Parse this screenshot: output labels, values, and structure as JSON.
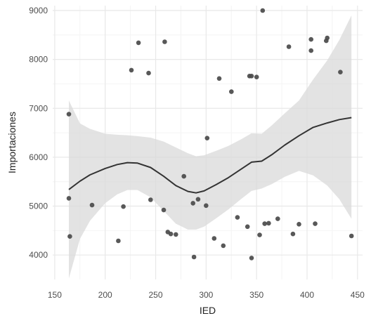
{
  "chart_data": {
    "type": "scatter",
    "xlabel": "IED",
    "ylabel": "Importaciones",
    "xlim": [
      148,
      455
    ],
    "ylim": [
      3500,
      9100
    ],
    "x_ticks": [
      150,
      200,
      250,
      300,
      350,
      400,
      450
    ],
    "y_ticks": [
      4000,
      5000,
      6000,
      7000,
      8000,
      9000
    ],
    "grid": true,
    "colors": {
      "points": "#4a4a4a",
      "smooth_line": "#333333",
      "confidence_band": "#d9d9d9",
      "grid_major": "#e8e8e8",
      "grid_minor": "#f4f4f4",
      "background": "#ffffff"
    },
    "points": [
      {
        "x": 164,
        "y": 6880
      },
      {
        "x": 164,
        "y": 5160
      },
      {
        "x": 165,
        "y": 4380
      },
      {
        "x": 187,
        "y": 5020
      },
      {
        "x": 213,
        "y": 4290
      },
      {
        "x": 218,
        "y": 4990
      },
      {
        "x": 226,
        "y": 7780
      },
      {
        "x": 233,
        "y": 8340
      },
      {
        "x": 243,
        "y": 7720
      },
      {
        "x": 245,
        "y": 5130
      },
      {
        "x": 258,
        "y": 4920
      },
      {
        "x": 259,
        "y": 8360
      },
      {
        "x": 262,
        "y": 4470
      },
      {
        "x": 265,
        "y": 4430
      },
      {
        "x": 270,
        "y": 4420
      },
      {
        "x": 278,
        "y": 5610
      },
      {
        "x": 287,
        "y": 5060
      },
      {
        "x": 288,
        "y": 3960
      },
      {
        "x": 292,
        "y": 5140
      },
      {
        "x": 300,
        "y": 5010
      },
      {
        "x": 301,
        "y": 6390
      },
      {
        "x": 308,
        "y": 4340
      },
      {
        "x": 313,
        "y": 7610
      },
      {
        "x": 317,
        "y": 4190
      },
      {
        "x": 325,
        "y": 7340
      },
      {
        "x": 331,
        "y": 4770
      },
      {
        "x": 341,
        "y": 4580
      },
      {
        "x": 343,
        "y": 7660
      },
      {
        "x": 345,
        "y": 7660
      },
      {
        "x": 345,
        "y": 3940
      },
      {
        "x": 350,
        "y": 7640
      },
      {
        "x": 353,
        "y": 4410
      },
      {
        "x": 356,
        "y": 9000
      },
      {
        "x": 358,
        "y": 4640
      },
      {
        "x": 362,
        "y": 4650
      },
      {
        "x": 371,
        "y": 4740
      },
      {
        "x": 382,
        "y": 8260
      },
      {
        "x": 386,
        "y": 4430
      },
      {
        "x": 392,
        "y": 4630
      },
      {
        "x": 404,
        "y": 8410
      },
      {
        "x": 404,
        "y": 8180
      },
      {
        "x": 408,
        "y": 4640
      },
      {
        "x": 419,
        "y": 8380
      },
      {
        "x": 420,
        "y": 8440
      },
      {
        "x": 433,
        "y": 7740
      },
      {
        "x": 444,
        "y": 4390
      }
    ],
    "smooth": {
      "x": [
        164,
        175,
        185,
        200,
        212,
        222,
        232,
        245,
        258,
        270,
        282,
        290,
        298,
        310,
        322,
        335,
        345,
        355,
        365,
        378,
        392,
        406,
        420,
        432,
        444
      ],
      "y": [
        5340,
        5510,
        5640,
        5770,
        5850,
        5890,
        5880,
        5790,
        5610,
        5420,
        5300,
        5270,
        5310,
        5440,
        5580,
        5760,
        5900,
        5920,
        6050,
        6250,
        6440,
        6610,
        6700,
        6770,
        6810
      ],
      "lower": [
        3520,
        4330,
        4700,
        5060,
        5240,
        5330,
        5330,
        5180,
        4900,
        4640,
        4520,
        4520,
        4580,
        4750,
        4930,
        5150,
        5310,
        5360,
        5450,
        5600,
        5720,
        5630,
        5420,
        5140,
        4740
      ],
      "upper": [
        7160,
        6690,
        6580,
        6480,
        6460,
        6450,
        6430,
        6400,
        6320,
        6200,
        6080,
        6020,
        6040,
        6130,
        6230,
        6370,
        6490,
        6480,
        6650,
        6900,
        7160,
        7590,
        7980,
        8400,
        8900
      ]
    }
  }
}
